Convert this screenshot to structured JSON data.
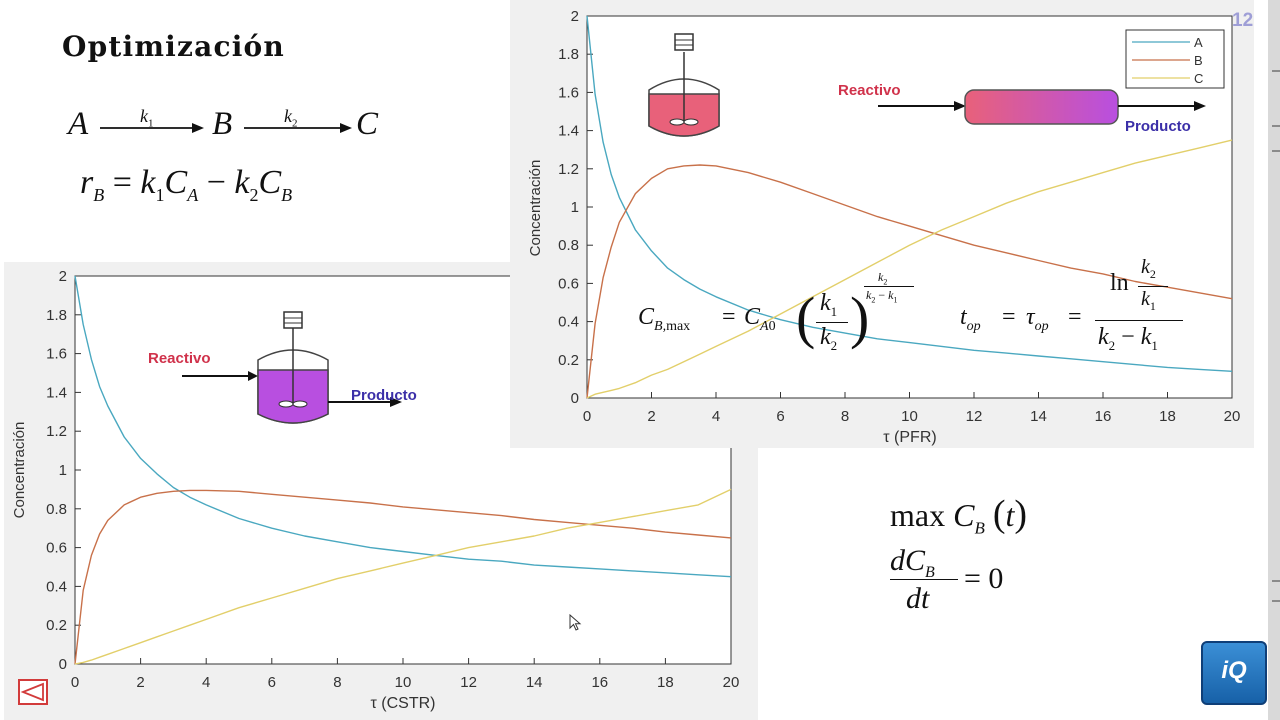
{
  "slide": {
    "title": "Optimización",
    "page_number": "12",
    "logo_text": "iQ"
  },
  "equations": {
    "reaction": {
      "a": "A",
      "b": "B",
      "c": "C",
      "k1": "k",
      "k1_sub": "1",
      "k2": "k",
      "k2_sub": "2"
    },
    "rate": "r_B = k_1 C_A − k_2 C_B",
    "cb_max": "C_B,max = C_A0 (k_1/k_2)^(k_2/(k_2 − k_1))",
    "t_op": "t_op = τ_op = ln(k_2/k_1) / (k_2 − k_1)",
    "max_cb": "max C_B(t)",
    "derivative": "dC_B/dt = 0"
  },
  "icons": {
    "back": "back-triangle-icon",
    "cursor": "mouse-cursor-icon",
    "reactor": "stirred-tank-icon",
    "pipe": "tubular-reactor-icon"
  },
  "colors": {
    "A": "#4aa8c0",
    "B": "#c8714a",
    "C": "#e2cf6a",
    "cstr_liquid": "#b84fe0",
    "pfr_liquid": "#e8617a",
    "reactant_label": "#d0324b",
    "product_label": "#3b2fa8"
  },
  "chart_data": [
    {
      "id": "cstr",
      "type": "line",
      "title": "",
      "xlabel": "τ (CSTR)",
      "ylabel": "Concentración",
      "xlim": [
        0,
        20
      ],
      "ylim": [
        0,
        2
      ],
      "xticks": [
        "0",
        "2",
        "4",
        "6",
        "8",
        "10",
        "12",
        "14",
        "16",
        "18",
        "20"
      ],
      "yticks": [
        "0",
        "0.2",
        "0.4",
        "0.6",
        "0.8",
        "1",
        "1.2",
        "1.4",
        "1.6",
        "1.8",
        "2"
      ],
      "legend": [],
      "annotations": {
        "reactant": "Reactivo",
        "product": "Producto"
      },
      "x": [
        0,
        0.25,
        0.5,
        0.75,
        1,
        1.5,
        2,
        2.5,
        3,
        3.5,
        4,
        5,
        6,
        7,
        8,
        9,
        10,
        11,
        12,
        13,
        14,
        15,
        16,
        17,
        18,
        19,
        20
      ],
      "series": [
        {
          "name": "A",
          "values": [
            2,
            1.75,
            1.57,
            1.43,
            1.33,
            1.17,
            1.06,
            0.98,
            0.91,
            0.86,
            0.82,
            0.75,
            0.7,
            0.66,
            0.63,
            0.6,
            0.58,
            0.56,
            0.54,
            0.53,
            0.51,
            0.5,
            0.49,
            0.48,
            0.47,
            0.46,
            0.45
          ]
        },
        {
          "name": "B",
          "values": [
            0,
            0.38,
            0.56,
            0.67,
            0.74,
            0.82,
            0.86,
            0.88,
            0.89,
            0.895,
            0.895,
            0.89,
            0.875,
            0.86,
            0.845,
            0.83,
            0.81,
            0.795,
            0.78,
            0.765,
            0.745,
            0.73,
            0.715,
            0.7,
            0.68,
            0.665,
            0.65
          ]
        },
        {
          "name": "C",
          "values": [
            0,
            0.008,
            0.02,
            0.035,
            0.05,
            0.08,
            0.11,
            0.14,
            0.17,
            0.2,
            0.23,
            0.29,
            0.34,
            0.39,
            0.44,
            0.48,
            0.52,
            0.56,
            0.6,
            0.63,
            0.66,
            0.7,
            0.73,
            0.76,
            0.79,
            0.82,
            0.9
          ]
        }
      ]
    },
    {
      "id": "pfr",
      "type": "line",
      "title": "",
      "xlabel": "τ (PFR)",
      "ylabel": "Concentración",
      "xlim": [
        0,
        20
      ],
      "ylim": [
        0,
        2
      ],
      "xticks": [
        "0",
        "2",
        "4",
        "6",
        "8",
        "10",
        "12",
        "14",
        "16",
        "18",
        "20"
      ],
      "yticks": [
        "0",
        "0.2",
        "0.4",
        "0.6",
        "0.8",
        "1",
        "1.2",
        "1.4",
        "1.6",
        "1.8",
        "2"
      ],
      "legend": [
        "A",
        "B",
        "C"
      ],
      "annotations": {
        "reactant": "Reactivo",
        "product": "Producto"
      },
      "x": [
        0,
        0.25,
        0.5,
        0.75,
        1,
        1.5,
        2,
        2.5,
        3,
        3.5,
        4,
        5,
        6,
        7,
        8,
        9,
        10,
        11,
        12,
        13,
        14,
        15,
        16,
        17,
        18,
        19,
        20
      ],
      "series": [
        {
          "name": "A",
          "values": [
            2,
            1.59,
            1.34,
            1.17,
            1.05,
            0.88,
            0.77,
            0.68,
            0.62,
            0.57,
            0.53,
            0.46,
            0.41,
            0.37,
            0.34,
            0.31,
            0.29,
            0.27,
            0.25,
            0.235,
            0.22,
            0.205,
            0.19,
            0.175,
            0.16,
            0.15,
            0.14
          ]
        },
        {
          "name": "B",
          "values": [
            0,
            0.39,
            0.63,
            0.79,
            0.92,
            1.07,
            1.15,
            1.2,
            1.215,
            1.22,
            1.215,
            1.18,
            1.13,
            1.07,
            1.01,
            0.95,
            0.9,
            0.85,
            0.8,
            0.76,
            0.72,
            0.68,
            0.65,
            0.61,
            0.58,
            0.55,
            0.52
          ]
        },
        {
          "name": "C",
          "values": [
            0,
            0.02,
            0.03,
            0.04,
            0.05,
            0.08,
            0.12,
            0.15,
            0.19,
            0.23,
            0.27,
            0.35,
            0.44,
            0.53,
            0.62,
            0.71,
            0.8,
            0.88,
            0.95,
            1.02,
            1.08,
            1.13,
            1.18,
            1.23,
            1.27,
            1.31,
            1.35
          ]
        }
      ]
    }
  ]
}
